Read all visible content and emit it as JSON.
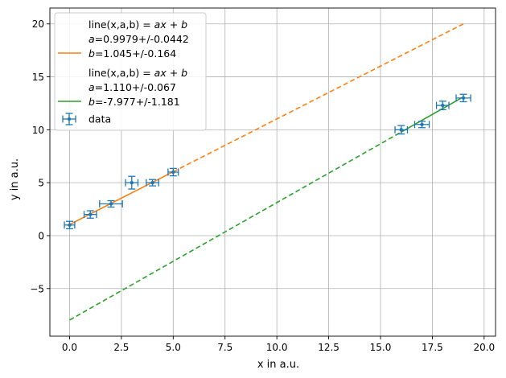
{
  "chart_data": {
    "type": "scatter",
    "xlabel": "x in a.u.",
    "ylabel": "y in a.u.",
    "xlim": [
      -0.95,
      20.55
    ],
    "ylim": [
      -9.5,
      21.5
    ],
    "x_ticks": [
      0.0,
      2.5,
      5.0,
      7.5,
      10.0,
      12.5,
      15.0,
      17.5,
      20.0
    ],
    "x_tick_labels": [
      "0.0",
      "2.5",
      "5.0",
      "7.5",
      "10.0",
      "12.5",
      "15.0",
      "17.5",
      "20.0"
    ],
    "y_ticks": [
      -5,
      0,
      5,
      10,
      15,
      20
    ],
    "y_tick_labels": [
      "−5",
      "0",
      "5",
      "10",
      "15",
      "20"
    ],
    "grid": true,
    "legend_position": "top-left",
    "data": {
      "label": "data",
      "color": "#1f77b4",
      "x": [
        0,
        1,
        2,
        3,
        4,
        5,
        16,
        17,
        18,
        19
      ],
      "y": [
        1.0,
        2.0,
        3.0,
        5.0,
        5.0,
        6.0,
        10.0,
        10.5,
        12.3,
        13.0
      ],
      "xerr": [
        0.25,
        0.3,
        0.55,
        0.3,
        0.3,
        0.25,
        0.3,
        0.35,
        0.3,
        0.35
      ],
      "yerr": [
        0.35,
        0.35,
        0.3,
        0.6,
        0.3,
        0.35,
        0.4,
        0.3,
        0.4,
        0.35
      ]
    },
    "fits": [
      {
        "label_line1": "line(x,a,b) = ",
        "label_formula": "ax + b",
        "label_line2": "=0.9979+/-0.0442",
        "label_line3": "=1.045+/-0.164",
        "param_a": "a",
        "param_b": "b",
        "color": "#ff7f0e",
        "a": 0.9979,
        "b": 1.045,
        "fit_range": [
          0,
          5
        ],
        "extrapolate_range": [
          5,
          19
        ]
      },
      {
        "label_line1": "line(x,a,b) = ",
        "label_formula": "ax + b",
        "label_line2": "=1.110+/-0.067",
        "label_line3": "=-7.977+/-1.181",
        "param_a": "a",
        "param_b": "b",
        "color": "#2ca02c",
        "a": 1.11,
        "b": -7.977,
        "fit_range": [
          16,
          19
        ],
        "extrapolate_range": [
          0,
          16
        ]
      }
    ]
  }
}
